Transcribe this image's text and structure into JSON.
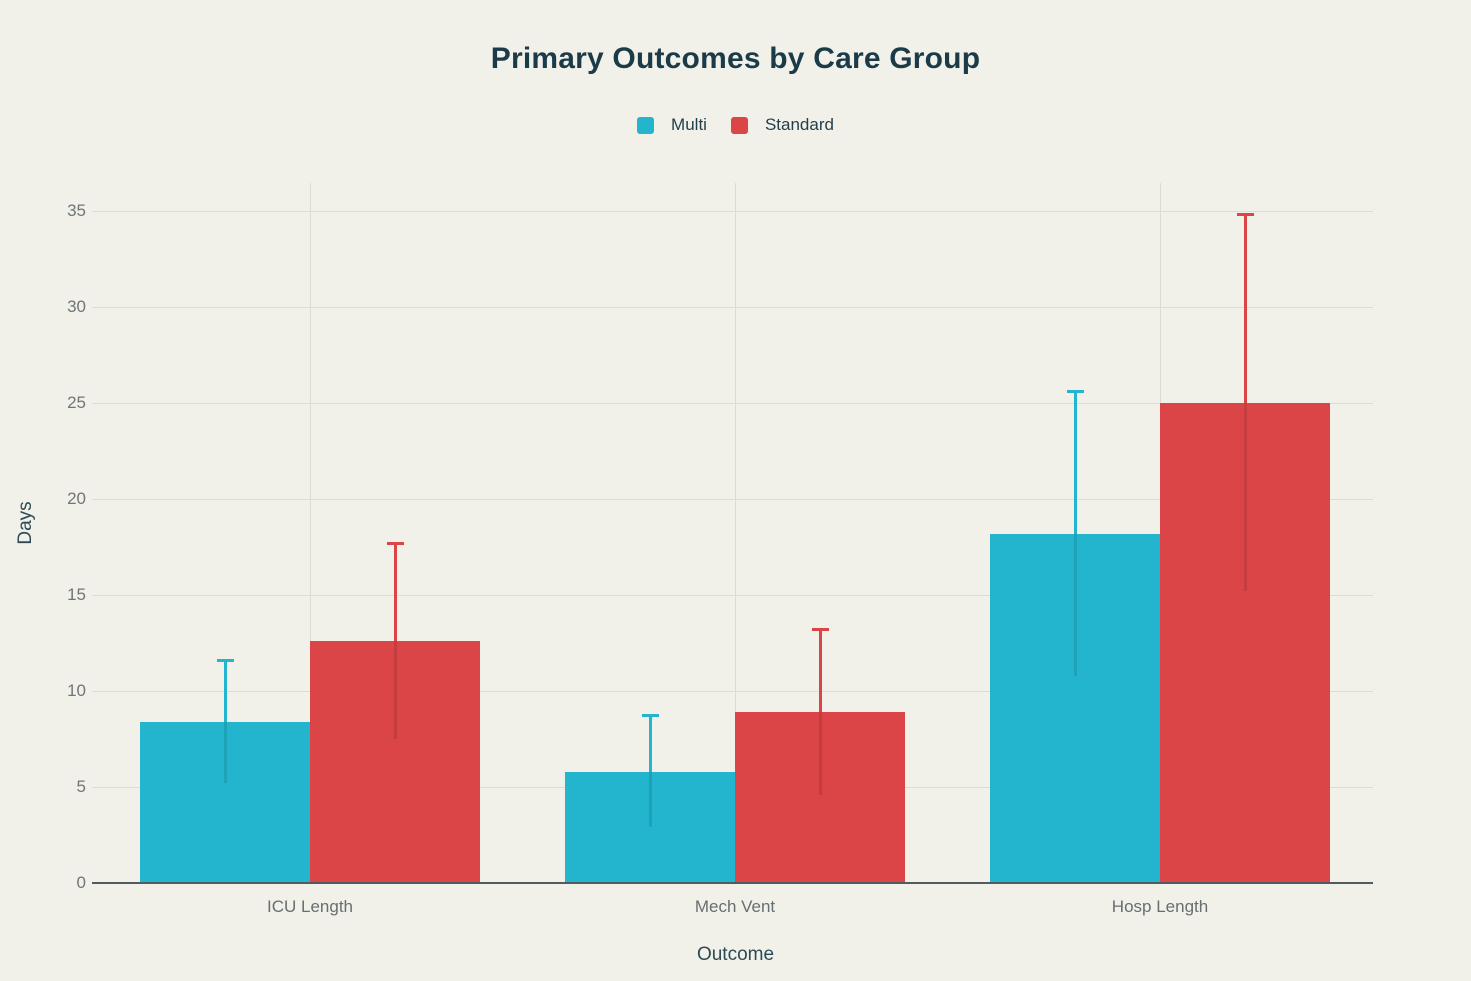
{
  "colors": {
    "background": "#f1f1ea",
    "teal": "#22b5cd",
    "red": "#dc4547",
    "grid": "#dcdcd4",
    "axis_line": "#525c60",
    "title_text": "#1c3b49",
    "axis_title_text": "#2d4a55",
    "y_tick_text": "#6e7678",
    "x_tick_text": "#676e71",
    "legend_text": "#243f4b"
  },
  "chart_data": {
    "type": "bar",
    "title": "Primary Outcomes by Care Group",
    "xlabel": "Outcome",
    "ylabel": "Days",
    "categories": [
      "ICU Length",
      "Mech Vent",
      "Hosp Length"
    ],
    "series": [
      {
        "name": "Multi",
        "color": "#22b5cd",
        "values": [
          8.4,
          5.8,
          18.2
        ],
        "error_plus": [
          3.2,
          2.9,
          7.4
        ]
      },
      {
        "name": "Standard",
        "color": "#dc4547",
        "values": [
          12.6,
          8.9,
          25.0
        ],
        "error_plus": [
          5.1,
          4.3,
          9.8
        ]
      }
    ],
    "ylim": [
      0,
      36.5
    ],
    "yticks": [
      0,
      5,
      10,
      15,
      20,
      25,
      30,
      35
    ],
    "grid": true,
    "legend_position": "top-center"
  }
}
